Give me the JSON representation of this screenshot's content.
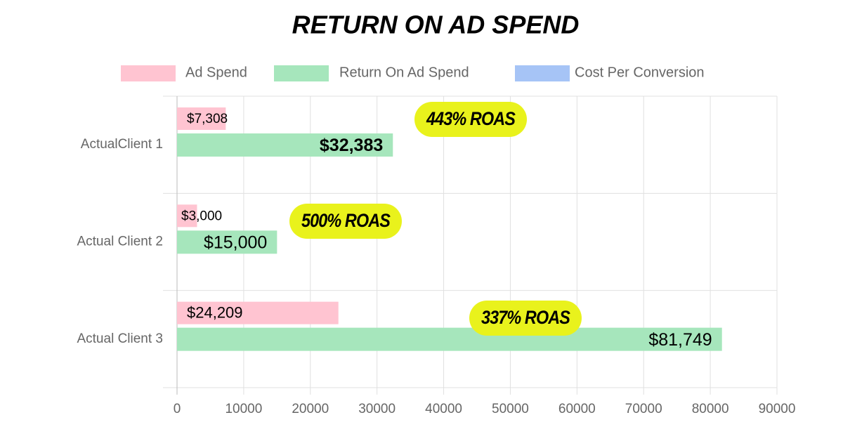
{
  "chart_data": {
    "type": "barh",
    "title": "RETURN ON AD SPEND",
    "categories": [
      "ActualClient 1",
      "Actual Client 2",
      "Actual Client 3"
    ],
    "series": [
      {
        "name": "Ad Spend",
        "color": "#ffc4d1",
        "values": [
          7308,
          3000,
          24209
        ],
        "value_labels": [
          "$7,308",
          "$3,000",
          "$24,209"
        ]
      },
      {
        "name": "Return On Ad Spend",
        "color": "#a6e6bc",
        "values": [
          32383,
          15000,
          81749
        ],
        "value_labels": [
          "$32,383",
          "$15,000",
          "$81,749"
        ]
      },
      {
        "name": "Cost Per Conversion",
        "color": "#a6c4f6",
        "values": [
          null,
          null,
          null
        ]
      }
    ],
    "annotations": [
      "443% ROAS",
      "500% ROAS",
      "337% ROAS"
    ],
    "xlim": [
      0,
      90000
    ],
    "xticks": [
      0,
      10000,
      20000,
      30000,
      40000,
      50000,
      60000,
      70000,
      80000,
      90000
    ],
    "grid": true,
    "legend": "top"
  }
}
